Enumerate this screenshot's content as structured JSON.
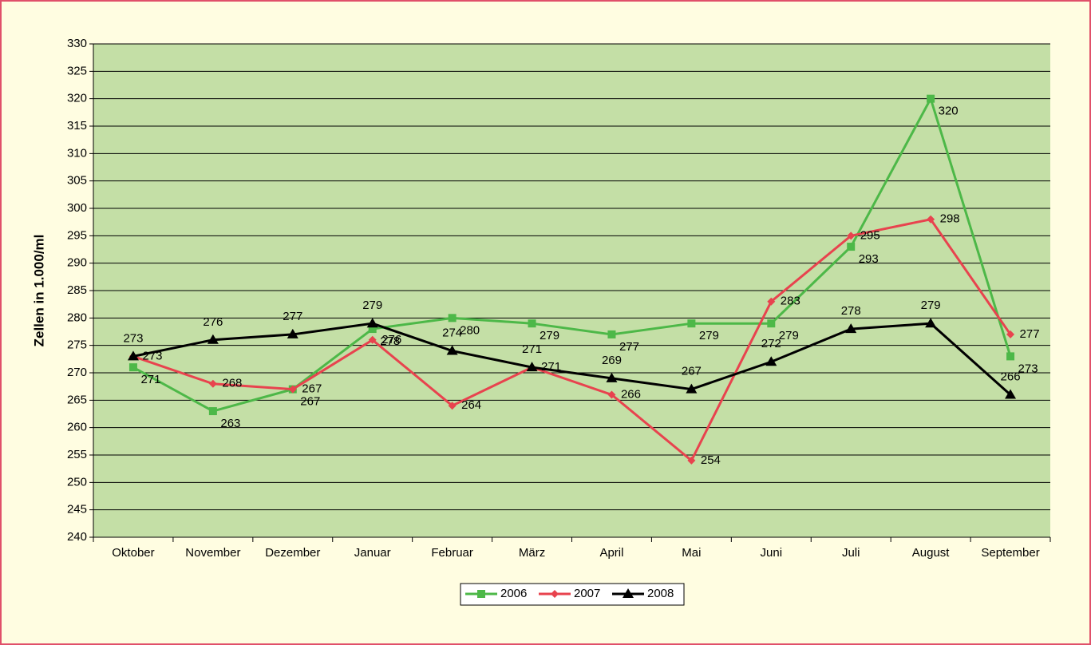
{
  "chart_data": {
    "type": "line",
    "y_label": "Zellen in 1.000/ml",
    "categories": [
      "Oktober",
      "November",
      "Dezember",
      "Januar",
      "Februar",
      "März",
      "April",
      "Mai",
      "Juni",
      "Juli",
      "August",
      "September"
    ],
    "series": [
      {
        "name": "2006",
        "color": "#4db848",
        "marker": "square",
        "values": [
          271,
          263,
          267,
          278,
          280,
          279,
          277,
          279,
          279,
          293,
          320,
          273
        ]
      },
      {
        "name": "2007",
        "color": "#e8434e",
        "marker": "diamond",
        "values": [
          273,
          268,
          267,
          276,
          264,
          271,
          266,
          254,
          283,
          295,
          298,
          277
        ]
      },
      {
        "name": "2008",
        "color": "#000000",
        "marker": "triangle",
        "values": [
          273,
          276,
          277,
          279,
          274,
          271,
          269,
          267,
          272,
          278,
          279,
          266
        ]
      }
    ],
    "ylim": [
      240,
      330
    ],
    "yticks": [
      240,
      245,
      250,
      255,
      260,
      265,
      270,
      275,
      280,
      285,
      290,
      295,
      300,
      305,
      310,
      315,
      320,
      325,
      330
    ],
    "grid": true,
    "legend": "bottom"
  }
}
